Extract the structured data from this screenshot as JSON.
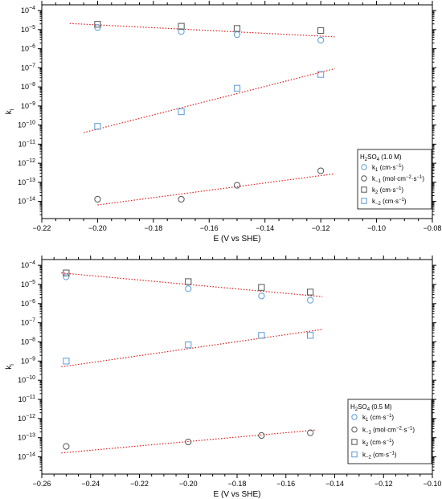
{
  "colors": {
    "blue": "#5b9bd5",
    "gray": "#555555",
    "fit": "#e02020"
  },
  "chart_data": [
    {
      "type": "scatter",
      "xlabel": "E (V vs SHE)",
      "ylabel": "k",
      "ylabel_sub": "i",
      "xlim": [
        -0.22,
        -0.08
      ],
      "ylim_log10": [
        -14.9,
        -3.7
      ],
      "log_y": true,
      "xticks": [
        -0.22,
        -0.2,
        -0.18,
        -0.16,
        -0.14,
        -0.12,
        -0.1,
        -0.08
      ],
      "xtick_labels": [
        "−0.22",
        "−0.20",
        "−0.18",
        "−0.16",
        "−0.14",
        "−0.12",
        "−0.10",
        "−0.08"
      ],
      "yticks_exp": [
        -14,
        -13,
        -12,
        -11,
        -10,
        -9,
        -8,
        -7,
        -6,
        -5,
        -4
      ],
      "legend": {
        "position": "right",
        "title_prefix": "H",
        "title_sub1": "2",
        "title_mid": "SO",
        "title_sub2": "4",
        "title_suffix": " (1.0 M)",
        "entries": [
          {
            "base": "k",
            "sub": "1",
            "unit": " (cm·s",
            "sup": "−1",
            "tail": ")"
          },
          {
            "base": "k",
            "sub": "−1",
            "unit": " (mol·cm",
            "sup": "−2",
            "mid": "·s",
            "sup2": "−1",
            "tail": ")"
          },
          {
            "base": "k",
            "sub": "2",
            "unit": " (cm·s",
            "sup": "−1",
            "tail": ")"
          },
          {
            "base": "k",
            "sub": "−2",
            "unit": " (cm·s",
            "sup": "−1",
            "tail": ")"
          }
        ]
      },
      "series": [
        {
          "marker": "circle",
          "color": "blue",
          "x": [
            -0.2,
            -0.17,
            -0.15,
            -0.12
          ],
          "y": [
            1.3e-05,
            8e-06,
            5.5e-06,
            2.8e-06
          ],
          "fit": [
            [
              -0.21,
              2.1e-05
            ],
            [
              -0.115,
              4.2e-06
            ]
          ]
        },
        {
          "marker": "circle",
          "color": "gray",
          "x": [
            -0.2,
            -0.17,
            -0.15,
            -0.12
          ],
          "y": [
            1.3e-14,
            1.3e-14,
            7e-14,
            4e-13
          ],
          "fit": [
            [
              -0.2,
              6.5e-15
            ],
            [
              -0.115,
              2.8e-13
            ]
          ]
        },
        {
          "marker": "square",
          "color": "gray",
          "x": [
            -0.2,
            -0.17,
            -0.15,
            -0.12
          ],
          "y": [
            1.9e-05,
            1.5e-05,
            1.15e-05,
            9e-06
          ],
          "fit": null
        },
        {
          "marker": "square",
          "color": "blue",
          "x": [
            -0.2,
            -0.17,
            -0.15,
            -0.12
          ],
          "y": [
            8.5e-11,
            5e-10,
            8.5e-09,
            4.5e-08
          ],
          "fit": [
            [
              -0.205,
              4e-11
            ],
            [
              -0.115,
              9e-08
            ]
          ]
        }
      ]
    },
    {
      "type": "scatter",
      "xlabel": "E (V vs SHE)",
      "ylabel": "k",
      "ylabel_sub": "i",
      "xlim": [
        -0.26,
        -0.1
      ],
      "ylim_log10": [
        -14.9,
        -3.7
      ],
      "log_y": true,
      "xticks": [
        -0.26,
        -0.24,
        -0.22,
        -0.2,
        -0.18,
        -0.16,
        -0.14,
        -0.12,
        -0.1
      ],
      "xtick_labels": [
        "−0.26",
        "−0.24",
        "−0.22",
        "−0.20",
        "−0.18",
        "−0.16",
        "−0.14",
        "−0.12",
        "−0.10"
      ],
      "yticks_exp": [
        -14,
        -13,
        -12,
        -11,
        -10,
        -9,
        -8,
        -7,
        -6,
        -5,
        -4
      ],
      "legend": {
        "position": "right",
        "title_prefix": "H",
        "title_sub1": "2",
        "title_mid": "SO",
        "title_sub2": "4",
        "title_suffix": " (0.5 M)",
        "entries": [
          {
            "base": "k",
            "sub": "1",
            "unit": " (cm·s",
            "sup": "−1",
            "tail": ")"
          },
          {
            "base": "k",
            "sub": "−1",
            "unit": " (mol·cm",
            "sup": "−2",
            "mid": "·s",
            "sup2": "−1",
            "tail": ")"
          },
          {
            "base": "k",
            "sub": "2",
            "unit": " (cm·s",
            "sup": "−1",
            "tail": ")"
          },
          {
            "base": "k",
            "sub": "−2",
            "unit": " (cm·s",
            "sup": "−1",
            "tail": ")"
          }
        ]
      },
      "series": [
        {
          "marker": "circle",
          "color": "blue",
          "x": [
            -0.25,
            -0.2,
            -0.17,
            -0.15
          ],
          "y": [
            2.5e-05,
            6e-06,
            2.5e-06,
            1.5e-06
          ],
          "fit": [
            [
              -0.252,
              4e-05
            ],
            [
              -0.145,
              2.3e-06
            ]
          ]
        },
        {
          "marker": "circle",
          "color": "gray",
          "x": [
            -0.25,
            -0.2,
            -0.17,
            -0.15
          ],
          "y": [
            3.5e-14,
            6e-14,
            1.3e-13,
            1.8e-13
          ],
          "fit": [
            [
              -0.252,
              1.6e-14
            ],
            [
              -0.148,
              2.5e-13
            ]
          ]
        },
        {
          "marker": "square",
          "color": "gray",
          "x": [
            -0.25,
            -0.2,
            -0.17,
            -0.15
          ],
          "y": [
            4e-05,
            1.4e-05,
            7e-06,
            4e-06
          ],
          "fit": null
        },
        {
          "marker": "square",
          "color": "blue",
          "x": [
            -0.25,
            -0.2,
            -0.17,
            -0.15
          ],
          "y": [
            1e-09,
            7e-09,
            2.2e-08,
            2.2e-08
          ],
          "fit": [
            [
              -0.252,
              5e-10
            ],
            [
              -0.145,
              4.5e-08
            ]
          ]
        }
      ]
    }
  ]
}
